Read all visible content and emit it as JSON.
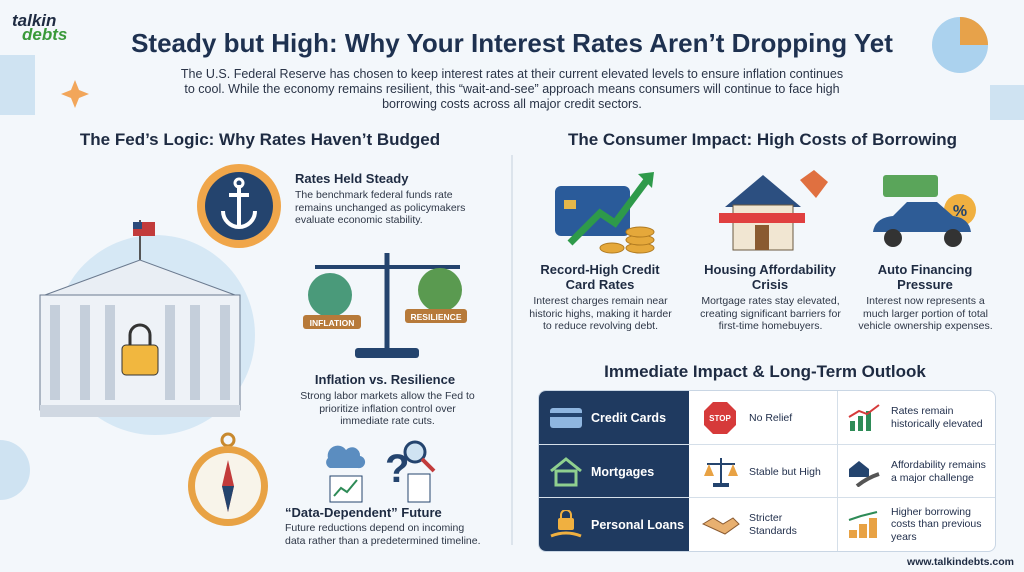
{
  "header": {
    "logo": [
      "talkin",
      "debts"
    ],
    "title": "Steady but High: Why Your Interest Rates Aren’t Dropping Yet",
    "intro": "The U.S. Federal Reserve has chosen to keep interest rates at their current elevated levels to ensure inflation continues to cool. While the economy remains resilient, this “wait-and-see” approach means consumers will continue to face high borrowing costs across all major credit sectors."
  },
  "fed_logic": {
    "heading": "The Fed’s Logic: Why Rates Haven’t Budged",
    "scale_labels": [
      "INFLATION",
      "RESILIENCE"
    ],
    "items": [
      {
        "title": "Rates Held Steady",
        "text": "The benchmark federal funds rate remains unchanged as policymakers evaluate economic stability."
      },
      {
        "title": "Inflation vs. Resilience",
        "text": "Strong labor markets allow the Fed to prioritize inflation control over immediate rate cuts."
      },
      {
        "title": "“Data-Dependent” Future",
        "text": "Future reductions depend on incoming data rather than a predetermined timeline."
      }
    ]
  },
  "consumer_impact": {
    "heading": "The Consumer Impact: High Costs of Borrowing",
    "cards": [
      {
        "title": "Record-High Credit Card Rates",
        "text": "Interest charges remain near historic highs, making it harder to reduce revolving debt."
      },
      {
        "title": "Housing Affordability Crisis",
        "text": "Mortgage rates stay elevated, creating significant barriers for first-time homebuyers."
      },
      {
        "title": "Auto Financing Pressure",
        "text": "Interest now represents a much larger portion of total vehicle ownership expenses."
      }
    ]
  },
  "table": {
    "heading": "Immediate Impact & Long-Term Outlook",
    "stop_sign": "STOP",
    "rows": [
      [
        "Credit Cards",
        "No Relief",
        "Rates remain historically elevated"
      ],
      [
        "Mortgages",
        "Stable but High",
        "Affordability remains a major challenge"
      ],
      [
        "Personal Loans",
        "Stricter Standards",
        "Higher borrowing costs than previous years"
      ]
    ]
  },
  "footer": {
    "url": "www.talkindebts.com"
  }
}
